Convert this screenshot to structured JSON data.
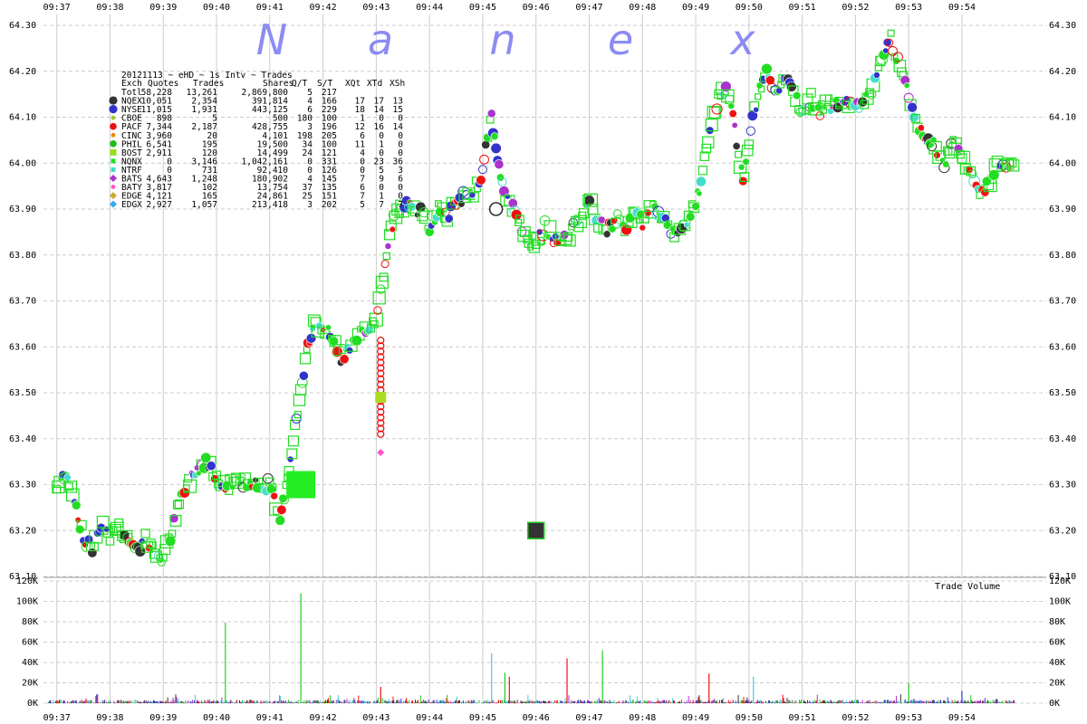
{
  "watermark": [
    "N",
    "a",
    "n",
    "e",
    "x"
  ],
  "chart_data": [
    {
      "type": "scatter",
      "title": "20121113 ~ eHD ~ 1s Intv ~ Trades",
      "xlim": [
        "09:36:45",
        "09:55:35"
      ],
      "ylim": [
        63.1,
        64.3
      ],
      "grid": true,
      "x_ticks": [
        "09:37",
        "09:38",
        "09:39",
        "09:40",
        "09:41",
        "09:42",
        "09:43",
        "09:44",
        "09:45",
        "09:46",
        "09:47",
        "09:48",
        "09:49",
        "09:50",
        "09:51",
        "09:52",
        "09:53",
        "09:54"
      ],
      "y_ticks": [
        "63.10",
        "63.20",
        "63.30",
        "63.40",
        "63.50",
        "63.60",
        "63.70",
        "63.80",
        "63.90",
        "64.00",
        "64.10",
        "64.20",
        "64.30"
      ],
      "legend": {
        "placement": "top-left",
        "headers": [
          "Exch",
          "Quotes",
          "Trades",
          "Shares",
          "Q/T",
          "S/T",
          "XQt",
          "XTd",
          "XSh"
        ],
        "rows": [
          {
            "exch": "Totl",
            "quotes": "58,228",
            "trades": "13,261",
            "shares": "2,869,800",
            "qt": "5",
            "st": "217",
            "xqt": "",
            "xtd": "",
            "xsh": "",
            "color": "",
            "marker": "none"
          },
          {
            "exch": "NQEX",
            "quotes": "10,051",
            "trades": "2,354",
            "shares": "391,814",
            "qt": "4",
            "st": "166",
            "xqt": "17",
            "xtd": "17",
            "xsh": "13",
            "color": "#333333",
            "marker": "circle-lg"
          },
          {
            "exch": "NYSE",
            "quotes": "11,015",
            "trades": "1,931",
            "shares": "443,125",
            "qt": "6",
            "st": "229",
            "xqt": "18",
            "xtd": "14",
            "xsh": "15",
            "color": "#3333cc",
            "marker": "circle-lg"
          },
          {
            "exch": "CBOE",
            "quotes": "898",
            "trades": "5",
            "shares": "500",
            "qt": "180",
            "st": "100",
            "xqt": "1",
            "xtd": "0",
            "xsh": "0",
            "color": "#99cc33",
            "marker": "circle-sm"
          },
          {
            "exch": "PACF",
            "quotes": "7,344",
            "trades": "2,187",
            "shares": "428,755",
            "qt": "3",
            "st": "196",
            "xqt": "12",
            "xtd": "16",
            "xsh": "14",
            "color": "#ee1111",
            "marker": "circle"
          },
          {
            "exch": "CINC",
            "quotes": "3,960",
            "trades": "20",
            "shares": "4,101",
            "qt": "198",
            "st": "205",
            "xqt": "6",
            "xtd": "0",
            "xsh": "0",
            "color": "#ee8800",
            "marker": "circle-sm"
          },
          {
            "exch": "PHIL",
            "quotes": "6,541",
            "trades": "195",
            "shares": "19,500",
            "qt": "34",
            "st": "100",
            "xqt": "11",
            "xtd": "1",
            "xsh": "0",
            "color": "#22bb22",
            "marker": "circle"
          },
          {
            "exch": "BOST",
            "quotes": "2,911",
            "trades": "120",
            "shares": "14,499",
            "qt": "24",
            "st": "121",
            "xqt": "4",
            "xtd": "0",
            "xsh": "0",
            "color": "#99dd22",
            "marker": "square"
          },
          {
            "exch": "NQNX",
            "quotes": "0",
            "trades": "3,146",
            "shares": "1,042,161",
            "qt": "0",
            "st": "331",
            "xqt": "0",
            "xtd": "23",
            "xsh": "36",
            "color": "#22dd22",
            "marker": "square-sm"
          },
          {
            "exch": "NTRF",
            "quotes": "0",
            "trades": "731",
            "shares": "92,410",
            "qt": "0",
            "st": "126",
            "xqt": "0",
            "xtd": "5",
            "xsh": "3",
            "color": "#44ddcc",
            "marker": "square-sm"
          },
          {
            "exch": "BATS",
            "quotes": "4,643",
            "trades": "1,248",
            "shares": "180,902",
            "qt": "4",
            "st": "145",
            "xqt": "7",
            "xtd": "9",
            "xsh": "6",
            "color": "#aa33cc",
            "marker": "diamond"
          },
          {
            "exch": "BATY",
            "quotes": "3,817",
            "trades": "102",
            "shares": "13,754",
            "qt": "37",
            "st": "135",
            "xqt": "6",
            "xtd": "0",
            "xsh": "0",
            "color": "#ff55cc",
            "marker": "circle-sm"
          },
          {
            "exch": "EDGE",
            "quotes": "4,121",
            "trades": "165",
            "shares": "24,861",
            "qt": "25",
            "st": "151",
            "xqt": "7",
            "xtd": "1",
            "xsh": "0",
            "color": "#ccaa33",
            "marker": "diamond"
          },
          {
            "exch": "EDGX",
            "quotes": "2,927",
            "trades": "1,057",
            "shares": "213,418",
            "qt": "3",
            "st": "202",
            "xqt": "5",
            "xtd": "7",
            "xsh": "7",
            "color": "#33aaee",
            "marker": "diamond"
          }
        ]
      },
      "price_path": [
        [
          "09:37:00",
          63.29
        ],
        [
          "09:37:05",
          63.31
        ],
        [
          "09:37:10",
          63.33
        ],
        [
          "09:37:20",
          63.27
        ],
        [
          "09:37:30",
          63.18
        ],
        [
          "09:37:40",
          63.16
        ],
        [
          "09:37:50",
          63.22
        ],
        [
          "09:38:00",
          63.19
        ],
        [
          "09:38:10",
          63.21
        ],
        [
          "09:38:20",
          63.18
        ],
        [
          "09:38:30",
          63.16
        ],
        [
          "09:38:40",
          63.18
        ],
        [
          "09:38:50",
          63.15
        ],
        [
          "09:39:00",
          63.14
        ],
        [
          "09:39:10",
          63.2
        ],
        [
          "09:39:20",
          63.27
        ],
        [
          "09:39:30",
          63.31
        ],
        [
          "09:39:40",
          63.34
        ],
        [
          "09:39:50",
          63.35
        ],
        [
          "09:40:00",
          63.32
        ],
        [
          "09:40:10",
          63.29
        ],
        [
          "09:40:20",
          63.31
        ],
        [
          "09:40:30",
          63.3
        ],
        [
          "09:40:40",
          63.31
        ],
        [
          "09:40:50",
          63.3
        ],
        [
          "09:41:00",
          63.3
        ],
        [
          "09:41:05",
          63.27
        ],
        [
          "09:41:10",
          63.21
        ],
        [
          "09:41:15",
          63.26
        ],
        [
          "09:41:20",
          63.32
        ],
        [
          "09:41:25",
          63.38
        ],
        [
          "09:41:30",
          63.44
        ],
        [
          "09:41:35",
          63.5
        ],
        [
          "09:41:40",
          63.56
        ],
        [
          "09:41:45",
          63.62
        ],
        [
          "09:41:50",
          63.65
        ],
        [
          "09:42:00",
          63.64
        ],
        [
          "09:42:10",
          63.62
        ],
        [
          "09:42:20",
          63.58
        ],
        [
          "09:42:30",
          63.59
        ],
        [
          "09:42:40",
          63.62
        ],
        [
          "09:42:50",
          63.64
        ],
        [
          "09:43:00",
          63.66
        ],
        [
          "09:43:05",
          63.72
        ],
        [
          "09:43:10",
          63.78
        ],
        [
          "09:43:15",
          63.84
        ],
        [
          "09:43:20",
          63.88
        ],
        [
          "09:43:30",
          63.9
        ],
        [
          "09:43:40",
          63.92
        ],
        [
          "09:43:50",
          63.89
        ],
        [
          "09:44:00",
          63.86
        ],
        [
          "09:44:10",
          63.9
        ],
        [
          "09:44:20",
          63.88
        ],
        [
          "09:44:30",
          63.91
        ],
        [
          "09:44:40",
          63.93
        ],
        [
          "09:44:50",
          63.94
        ],
        [
          "09:45:00",
          63.98
        ],
        [
          "09:45:05",
          64.05
        ],
        [
          "09:45:10",
          64.1
        ],
        [
          "09:45:15",
          64.03
        ],
        [
          "09:45:20",
          63.96
        ],
        [
          "09:45:30",
          63.91
        ],
        [
          "09:45:40",
          63.88
        ],
        [
          "09:45:50",
          63.84
        ],
        [
          "09:46:00",
          63.82
        ],
        [
          "09:46:10",
          63.86
        ],
        [
          "09:46:20",
          63.84
        ],
        [
          "09:46:30",
          63.83
        ],
        [
          "09:46:40",
          63.85
        ],
        [
          "09:46:50",
          63.88
        ],
        [
          "09:47:00",
          63.92
        ],
        [
          "09:47:10",
          63.87
        ],
        [
          "09:47:20",
          63.85
        ],
        [
          "09:47:30",
          63.88
        ],
        [
          "09:47:40",
          63.86
        ],
        [
          "09:47:50",
          63.89
        ],
        [
          "09:48:00",
          63.87
        ],
        [
          "09:48:10",
          63.9
        ],
        [
          "09:48:20",
          63.88
        ],
        [
          "09:48:30",
          63.86
        ],
        [
          "09:48:40",
          63.84
        ],
        [
          "09:48:50",
          63.88
        ],
        [
          "09:49:00",
          63.91
        ],
        [
          "09:49:10",
          64.0
        ],
        [
          "09:49:20",
          64.1
        ],
        [
          "09:49:30",
          64.17
        ],
        [
          "09:49:40",
          64.13
        ],
        [
          "09:49:50",
          64.0
        ],
        [
          "09:49:55",
          63.96
        ],
        [
          "09:50:00",
          64.05
        ],
        [
          "09:50:10",
          64.15
        ],
        [
          "09:50:20",
          64.2
        ],
        [
          "09:50:30",
          64.16
        ],
        [
          "09:50:40",
          64.19
        ],
        [
          "09:50:50",
          64.15
        ],
        [
          "09:51:00",
          64.12
        ],
        [
          "09:51:10",
          64.14
        ],
        [
          "09:51:20",
          64.11
        ],
        [
          "09:51:30",
          64.13
        ],
        [
          "09:51:40",
          64.12
        ],
        [
          "09:51:50",
          64.14
        ],
        [
          "09:52:00",
          64.12
        ],
        [
          "09:52:10",
          64.13
        ],
        [
          "09:52:20",
          64.16
        ],
        [
          "09:52:30",
          64.24
        ],
        [
          "09:52:40",
          64.27
        ],
        [
          "09:52:50",
          64.21
        ],
        [
          "09:53:00",
          64.15
        ],
        [
          "09:53:10",
          64.08
        ],
        [
          "09:53:20",
          64.06
        ],
        [
          "09:53:30",
          64.03
        ],
        [
          "09:53:40",
          64.0
        ],
        [
          "09:53:50",
          64.05
        ],
        [
          "09:54:00",
          64.01
        ],
        [
          "09:54:10",
          63.98
        ],
        [
          "09:54:20",
          63.93
        ],
        [
          "09:54:30",
          63.96
        ],
        [
          "09:54:40",
          63.99
        ],
        [
          "09:54:50",
          64.0
        ],
        [
          "09:55:00",
          63.98
        ]
      ],
      "outlier_trades": [
        {
          "exch": "NQNX",
          "time": "09:41:35",
          "price": 63.3,
          "marker": "square-xl",
          "color": "#22ee22"
        },
        {
          "exch": "NQEX",
          "time": "09:46:00",
          "price": 63.2,
          "marker": "square-lg",
          "color": "#333333"
        },
        {
          "exch": "BOST",
          "time": "09:43:05",
          "price": 63.49,
          "marker": "square",
          "color": "#aadd22"
        },
        {
          "exch": "BATY",
          "time": "09:43:05",
          "price": 63.37,
          "marker": "diamond",
          "color": "#ff55cc"
        },
        {
          "exch": "NQEX",
          "time": "09:45:15",
          "price": 63.9,
          "marker": "circle-lg",
          "color": "#333333"
        }
      ],
      "pacf_column": {
        "time": "09:43:05",
        "from": 63.41,
        "to": 63.62,
        "color": "#ee1111"
      }
    },
    {
      "type": "bar",
      "title": "Trade Volume",
      "ylim": [
        0,
        120000
      ],
      "y_ticks": [
        "0K",
        "20K",
        "40K",
        "60K",
        "80K",
        "100K",
        "120K"
      ],
      "spikes": [
        {
          "time": "09:40:10",
          "value": 79000,
          "color": "#22cc22"
        },
        {
          "time": "09:41:35",
          "value": 108000,
          "color": "#22cc22"
        },
        {
          "time": "09:43:05",
          "value": 16000,
          "color": "#ee1111"
        },
        {
          "time": "09:45:10",
          "value": 49000,
          "color": "#44ccdd"
        },
        {
          "time": "09:45:25",
          "value": 30000,
          "color": "#22cc22"
        },
        {
          "time": "09:45:30",
          "value": 26000,
          "color": "#ee1111"
        },
        {
          "time": "09:46:35",
          "value": 44000,
          "color": "#ee1111"
        },
        {
          "time": "09:47:15",
          "value": 52000,
          "color": "#22cc22"
        },
        {
          "time": "09:49:15",
          "value": 29000,
          "color": "#ee1111"
        },
        {
          "time": "09:50:05",
          "value": 26000,
          "color": "#44ccdd"
        },
        {
          "time": "09:53:00",
          "value": 20000,
          "color": "#22cc22"
        },
        {
          "time": "09:54:00",
          "value": 12000,
          "color": "#3333cc"
        }
      ]
    }
  ]
}
